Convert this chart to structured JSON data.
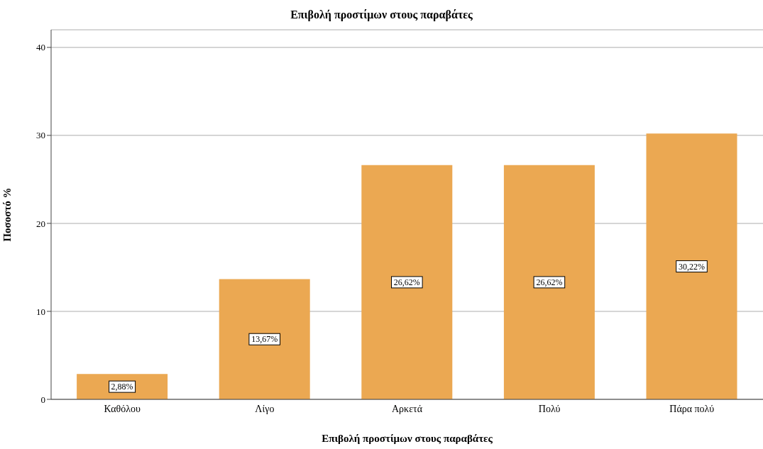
{
  "chart_data": {
    "type": "bar",
    "title": "Επιβολή προστίμων στους παραβάτες",
    "xlabel": "Επιβολή προστίμων στους παραβάτες",
    "ylabel": "Ποσοστό %",
    "categories": [
      "Καθόλου",
      "Λίγο",
      "Αρκετά",
      "Πολύ",
      "Πάρα πολύ"
    ],
    "values": [
      2.88,
      13.67,
      26.62,
      26.62,
      30.22
    ],
    "value_labels": [
      "2,88%",
      "13,67%",
      "26,62%",
      "26,62%",
      "30,22%"
    ],
    "color": "#eba852",
    "ylim": [
      0,
      42
    ],
    "yticks": [
      0,
      10,
      20,
      30,
      40
    ],
    "grid": "y"
  }
}
